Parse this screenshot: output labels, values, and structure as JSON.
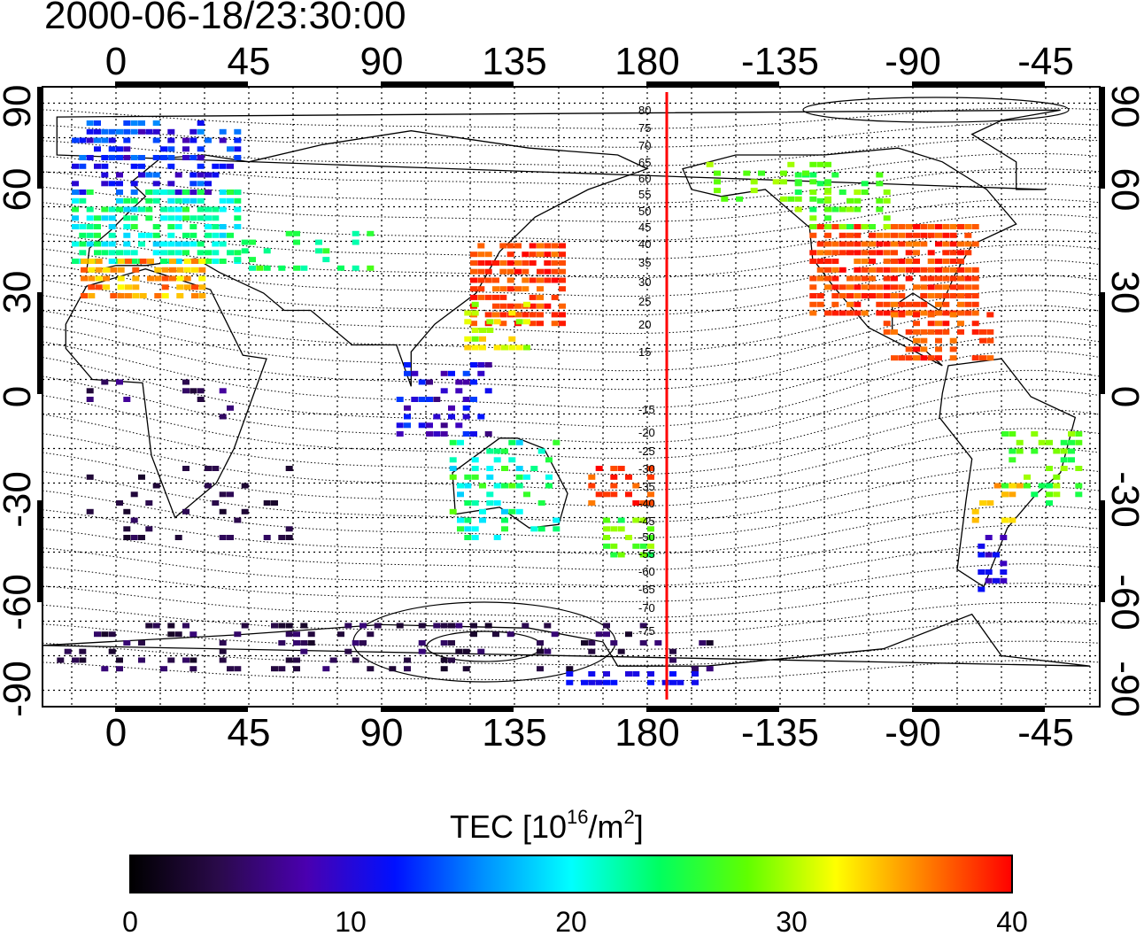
{
  "header": {
    "timestamp": "2000-06-18/23:30:00"
  },
  "map": {
    "top_lon_ticks": [
      "0",
      "45",
      "90",
      "135",
      "180",
      "-135",
      "-90",
      "-45"
    ],
    "bottom_lon_ticks": [
      "0",
      "45",
      "90",
      "135",
      "180",
      "-135",
      "-90",
      "-45"
    ],
    "left_lat_ticks": [
      "90",
      "60",
      "30",
      "0",
      "-30",
      "-60",
      "-90"
    ],
    "right_lat_ticks": [
      "90",
      "60",
      "30",
      "0",
      "-30",
      "-60",
      "-90"
    ],
    "magnetic_lat_labels": [
      "80",
      "75",
      "70",
      "65",
      "60",
      "55",
      "50",
      "45",
      "40",
      "35",
      "30",
      "25",
      "20",
      "15",
      "-15",
      "-20",
      "-25",
      "-30",
      "-35",
      "-40",
      "-45",
      "-50",
      "-55",
      "-60",
      "-65",
      "-70",
      "-75"
    ],
    "meridian_marker_color": "#ff0000"
  },
  "colorbar": {
    "label": "TEC  [10",
    "label_sup": "16",
    "label_mid": "/m",
    "label_sup2": "2",
    "label_end": "]",
    "ticks": [
      "0",
      "10",
      "20",
      "30",
      "40"
    ],
    "range": [
      0,
      40
    ]
  }
}
